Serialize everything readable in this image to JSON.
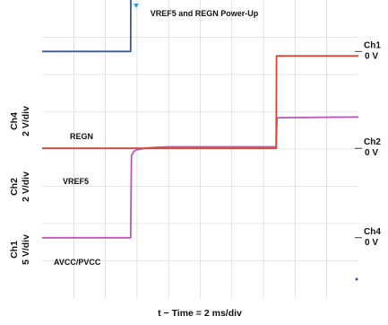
{
  "chart_data": {
    "type": "line",
    "title": "VREF5 and REGN Power-Up",
    "xlabel": "t − Time = 2 ms/div",
    "xlim": [
      0,
      20
    ],
    "grid": true,
    "grid_divisions": {
      "x": 10,
      "y": 8
    },
    "background": "#ffffff",
    "grid_color": "#cfcfcf",
    "channels": [
      {
        "id": "Ch4",
        "scale": "2 V/div",
        "side_label": "Ch4\n2 V/div",
        "right_label": "Ch4",
        "zero_label": "0 V",
        "zero_div": 1.62
      },
      {
        "id": "Ch2",
        "scale": "2 V/div",
        "side_label": "Ch2\n2 V/div",
        "right_label": "Ch2",
        "zero_label": "0 V",
        "zero_div": 4.02
      },
      {
        "id": "Ch1",
        "scale": "5 V/div",
        "side_label": "Ch1\n5 V/div",
        "right_label": "Ch1",
        "zero_label": "0 V",
        "zero_div": 6.62
      }
    ],
    "series": [
      {
        "name": "REGN",
        "channel": "Ch4",
        "color": "#b65ab5",
        "x": [
          0,
          5.6,
          5.65,
          5.8,
          6.0,
          6.5,
          7.0,
          8.0,
          14.8,
          14.85,
          14.9,
          20
        ],
        "y": [
          0,
          0,
          2.2,
          2.32,
          2.36,
          2.4,
          2.42,
          2.44,
          2.44,
          3.2,
          3.22,
          3.24
        ]
      },
      {
        "name": "VREF5",
        "channel": "Ch2",
        "color": "#d9452f",
        "x": [
          0,
          14.8,
          14.82,
          20
        ],
        "y": [
          0,
          0,
          2.48,
          2.48
        ]
      },
      {
        "name": "AVCC/PVCC",
        "channel": "Ch1",
        "color": "#2f5aa8",
        "x": [
          0,
          5.6,
          5.62,
          20
        ],
        "y": [
          0,
          0,
          3.32,
          3.3
        ]
      }
    ],
    "annotations": [
      "REGN",
      "VREF5",
      "AVCC/PVCC"
    ]
  }
}
